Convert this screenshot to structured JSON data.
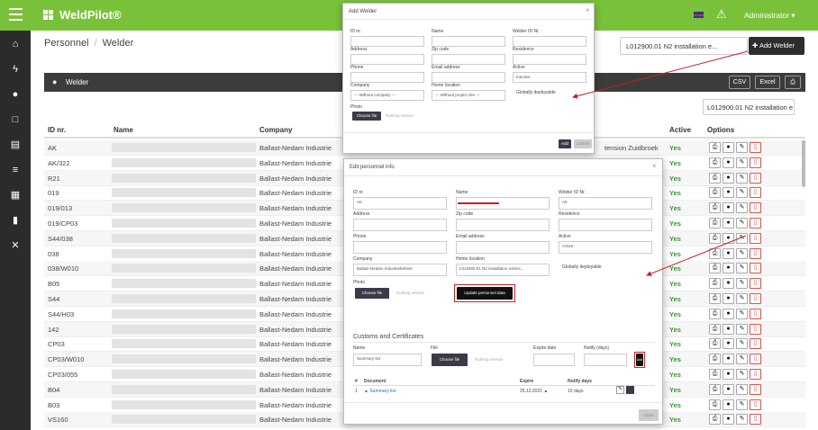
{
  "app": {
    "title": "WeldPilot®",
    "user": "Administrator ▾"
  },
  "breadcrumb": {
    "first": "Personnel",
    "second": "Welder"
  },
  "header": {
    "project_select": "L012900.01 N2 installation e...",
    "add_welder": "Add Welder"
  },
  "panel": {
    "title": "Welder",
    "csv": "CSV",
    "excel": "Excel",
    "project_filter": "L012900.01 N2 installation e"
  },
  "table": {
    "columns": {
      "id": "ID nr.",
      "name": "Name",
      "company": "Company",
      "active": "Active",
      "options": "Options"
    },
    "background_text": "tension Zuidbroek",
    "rows": [
      {
        "id": "AK",
        "company": "Ballast-Nedam Industrie",
        "active": "Yes"
      },
      {
        "id": "AK/322",
        "company": "Ballast-Nedam Industrie",
        "active": "Yes"
      },
      {
        "id": "R21",
        "company": "Ballast-Nedam Industrie",
        "active": "Yes"
      },
      {
        "id": "019",
        "company": "Ballast-Nedam Industrie",
        "active": "Yes"
      },
      {
        "id": "019/013",
        "company": "Ballast-Nedam Industrie",
        "active": "Yes"
      },
      {
        "id": "019/CP03",
        "company": "Ballast-Nedam Industrie",
        "active": "Yes"
      },
      {
        "id": "S44/038",
        "company": "Ballast-Nedam Industrie",
        "active": "Yes"
      },
      {
        "id": "038",
        "company": "Ballast-Nedam Industrie",
        "active": "Yes"
      },
      {
        "id": "038/W010",
        "company": "Ballast-Nedam Industrie",
        "active": "Yes"
      },
      {
        "id": "B05",
        "company": "Ballast-Nedam Industrie",
        "active": "Yes"
      },
      {
        "id": "S44",
        "company": "Ballast-Nedam Industrie",
        "active": "Yes"
      },
      {
        "id": "S44/H03",
        "company": "Ballast-Nedam Industrie",
        "active": "Yes"
      },
      {
        "id": "142",
        "company": "Ballast-Nedam Industrie",
        "active": "Yes"
      },
      {
        "id": "CP03",
        "company": "Ballast-Nedam Industrie",
        "active": "Yes"
      },
      {
        "id": "CP03/W010",
        "company": "Ballast-Nedam Industrie",
        "active": "Yes"
      },
      {
        "id": "CP03/055",
        "company": "Ballast-Nedam Industrie",
        "active": "Yes"
      },
      {
        "id": "B04",
        "company": "Ballast-Nedam Industrie",
        "active": "Yes"
      },
      {
        "id": "B03",
        "company": "Ballast-Nedam Industrie",
        "active": "Yes"
      },
      {
        "id": "VS160",
        "company": "Ballast-Nedam Industrie",
        "active": "Yes"
      }
    ]
  },
  "add_modal": {
    "title": "Add Welder",
    "id_label": "ID nr.",
    "name_label": "Name",
    "welder_id_label": "Welder ID Nr.",
    "address_label": "Address",
    "zip_label": "Zip code",
    "residence_label": "Residence",
    "phone_label": "Phone",
    "email_label": "Email address",
    "active_label": "Active",
    "active_value": "Inactive",
    "company_label": "Company",
    "company_value": "--- Without company ---",
    "home_label": "Home location",
    "home_value": "--- Without project site ---",
    "global_label": "Globally deployable",
    "photo_label": "Photo",
    "choose_file": "Choose file",
    "nothing": "Nothing selecte",
    "add_btn": "Add",
    "cancel_btn": "Cancel"
  },
  "edit_modal": {
    "title": "Edit personnel info",
    "id_label": "ID nr.",
    "id_value": "AK",
    "name_label": "Name",
    "welder_id_label": "Welder ID Nr.",
    "welder_id_value": "AK",
    "address_label": "Address",
    "zip_label": "Zip code",
    "residence_label": "Residence",
    "phone_label": "Phone",
    "email_label": "Email address",
    "active_label": "Active",
    "active_value": "Active",
    "company_label": "Company",
    "company_value": "Ballast-Nedam Industriebeheer",
    "home_label": "Home location",
    "home_value": "L012900.01 N2 installation extens...",
    "global_label": "Globally deployable",
    "photo_label": "Photo",
    "choose_file": "Choose file",
    "nothing": "Nothing selecte",
    "update_btn": "Update personnel data",
    "cert_title": "Customs and Certificates",
    "cert_name_label": "Name",
    "cert_name_value": "Summary list",
    "cert_file_label": "File",
    "cert_expire_label": "Expire date",
    "cert_notify_label": "Notify (days)",
    "cert_add_btn": "Add",
    "doc_cols": {
      "num": "#",
      "doc": "Document",
      "expire": "Expire",
      "notify": "Notify days"
    },
    "doc_row": {
      "num": "1",
      "doc": "Summary list",
      "expire": "25.12.2021",
      "notify": "10 days"
    },
    "close_btn": "Close"
  },
  "colors": {
    "green": "#7ac13a",
    "dark": "#2b2b2b",
    "annotation": "#c8202a"
  }
}
